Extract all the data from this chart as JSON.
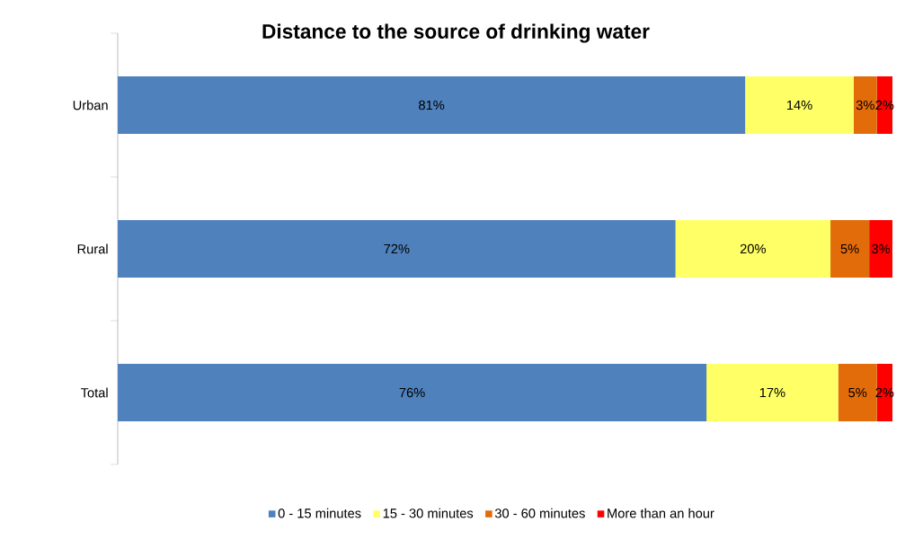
{
  "chart_data": {
    "type": "bar",
    "orientation": "horizontal",
    "stacked": true,
    "title": "Distance to the source of drinking water",
    "categories": [
      "Urban",
      "Rural",
      "Total"
    ],
    "xlim": [
      0,
      100
    ],
    "tick_labels": "y",
    "legend": "bottom",
    "series": [
      {
        "name": "0 - 15 minutes",
        "color": "#4f81bd",
        "values": [
          81,
          72,
          76
        ],
        "value_labels": [
          "81%",
          "72%",
          "76%"
        ]
      },
      {
        "name": "15 - 30 minutes",
        "color": "#ffff66",
        "values": [
          14,
          20,
          17
        ],
        "value_labels": [
          "14%",
          "20%",
          "17%"
        ]
      },
      {
        "name": "30 - 60 minutes",
        "color": "#e36c0a",
        "values": [
          3,
          5,
          5
        ],
        "value_labels": [
          "3%",
          "5%",
          "5%"
        ]
      },
      {
        "name": "More than an hour",
        "color": "#ff0000",
        "values": [
          2,
          3,
          2
        ],
        "value_labels": [
          "2%",
          "3%",
          "2%"
        ]
      }
    ]
  }
}
